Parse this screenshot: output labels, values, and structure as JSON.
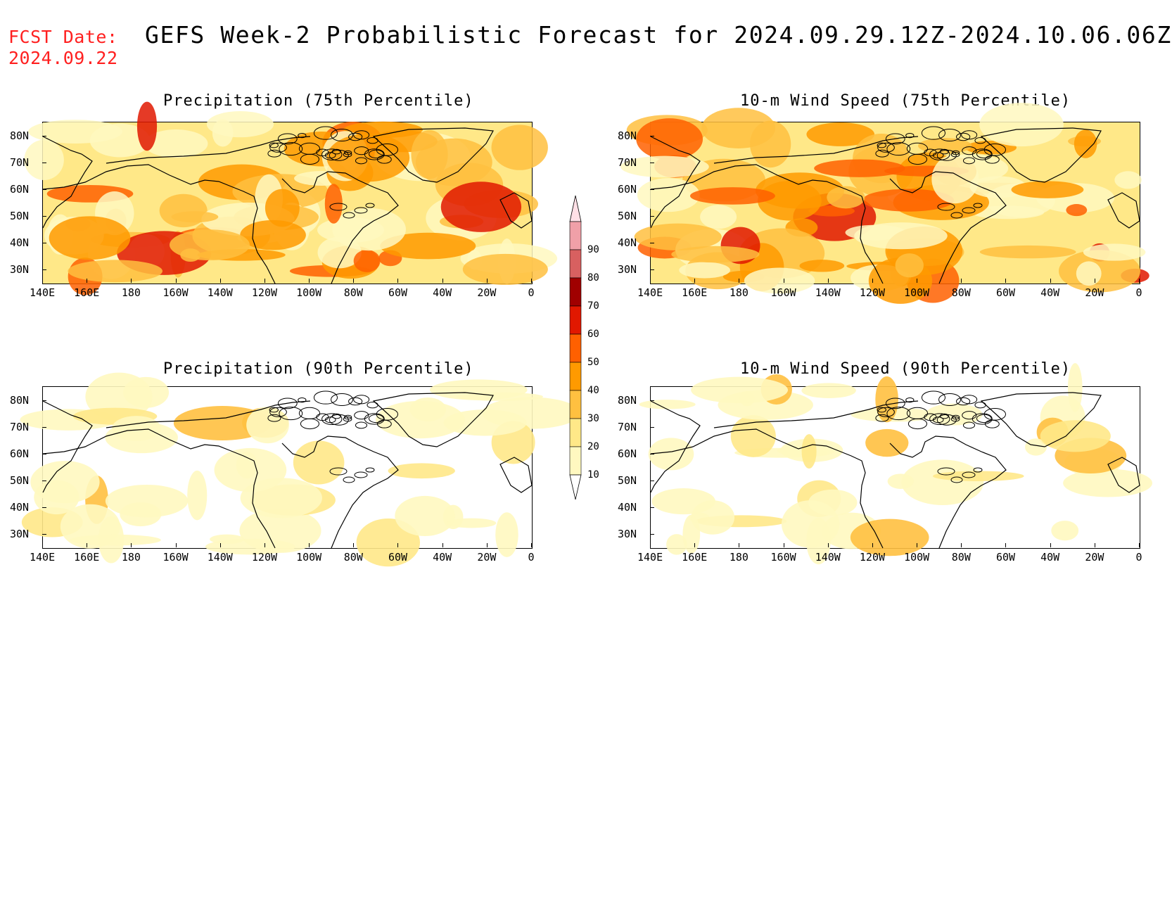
{
  "header": {
    "fcst_label": "FCST Date:",
    "fcst_date": "2024.09.22",
    "title": "GEFS Week-2 Probabilistic Forecast for 2024.09.29.12Z-2024.10.06.06Z"
  },
  "panels": [
    {
      "id": "precip75",
      "title": "Precipitation (75th Percentile)",
      "intensity": "high"
    },
    {
      "id": "wind75",
      "title": "10-m Wind Speed (75th Percentile)",
      "intensity": "high"
    },
    {
      "id": "precip90",
      "title": "Precipitation (90th Percentile)",
      "intensity": "low"
    },
    {
      "id": "wind90",
      "title": "10-m Wind Speed (90th Percentile)",
      "intensity": "low"
    }
  ],
  "axes": {
    "lon_labels": [
      "140E",
      "160E",
      "180",
      "160W",
      "140W",
      "120W",
      "100W",
      "80W",
      "60W",
      "40W",
      "20W",
      "0"
    ],
    "lat_labels": [
      "80N",
      "70N",
      "60N",
      "50N",
      "40N",
      "30N"
    ]
  },
  "colorbar": {
    "levels": [
      "10",
      "20",
      "30",
      "40",
      "50",
      "60",
      "70",
      "80",
      "90"
    ],
    "colors": [
      "#fff8c0",
      "#ffe888",
      "#ffc040",
      "#ff9a00",
      "#ff6000",
      "#e11800",
      "#a00000",
      "#d86060",
      "#f0a0a8",
      "#ffe0e6"
    ]
  }
}
